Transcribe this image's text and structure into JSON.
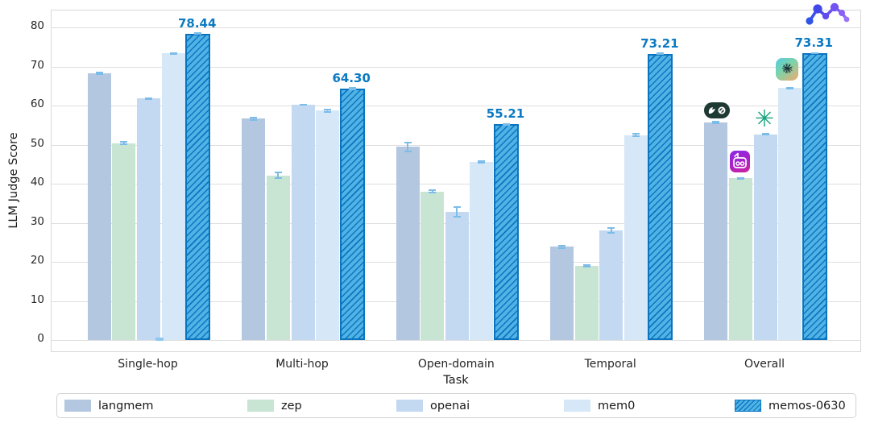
{
  "chart_data": {
    "type": "bar",
    "title": "",
    "xlabel": "Task",
    "ylabel": "LLM Judge Score",
    "ylim": [
      0,
      84
    ],
    "yticks": [
      0,
      10,
      20,
      30,
      40,
      50,
      60,
      70,
      80
    ],
    "grid": true,
    "legend_position": "bottom",
    "categories": [
      "Single-hop",
      "Multi-hop",
      "Open-domain",
      "Temporal",
      "Overall"
    ],
    "series": [
      {
        "name": "langmem",
        "color": "#b4c7e0",
        "values": [
          68.2,
          56.6,
          49.4,
          23.9,
          55.7
        ],
        "errors": [
          0.4,
          0.5,
          1.4,
          0.5,
          0.4
        ]
      },
      {
        "name": "zep",
        "color": "#c8e5d3",
        "values": [
          50.4,
          42.1,
          38.0,
          19.0,
          41.4
        ],
        "errors": [
          0.6,
          0.9,
          0.5,
          0.4,
          0.3
        ]
      },
      {
        "name": "openai",
        "color": "#c3d9f2",
        "values": [
          61.8,
          60.2,
          32.8,
          28.1,
          52.6
        ],
        "errors": [
          0.3,
          0.2,
          1.5,
          0.8,
          0.3
        ]
      },
      {
        "name": "mem0",
        "color": "#d6e8f7",
        "values": [
          73.3,
          58.7,
          45.6,
          52.4,
          64.5
        ],
        "errors": [
          0.4,
          0.5,
          0.4,
          0.5,
          0.3
        ]
      },
      {
        "name": "memos-0630",
        "color": "#4fb3e5",
        "hatch": true,
        "edge_color": "#0a74c0",
        "values": [
          78.44,
          64.3,
          55.21,
          73.21,
          73.31
        ],
        "errors": [
          0.3,
          0.4,
          0.3,
          0.3,
          0.2
        ],
        "value_labels": [
          "78.44",
          "64.30",
          "55.21",
          "73.21",
          "73.31"
        ]
      }
    ],
    "value_label_color": "#0c7ac2",
    "annotations": {
      "overall_icons": [
        "langchain-feather-link-icon",
        "zep-robot-icon",
        "openai-knot-icon",
        "mem0-knot-ball-icon"
      ],
      "top_right_icon": "memos-network-logo-icon"
    }
  }
}
